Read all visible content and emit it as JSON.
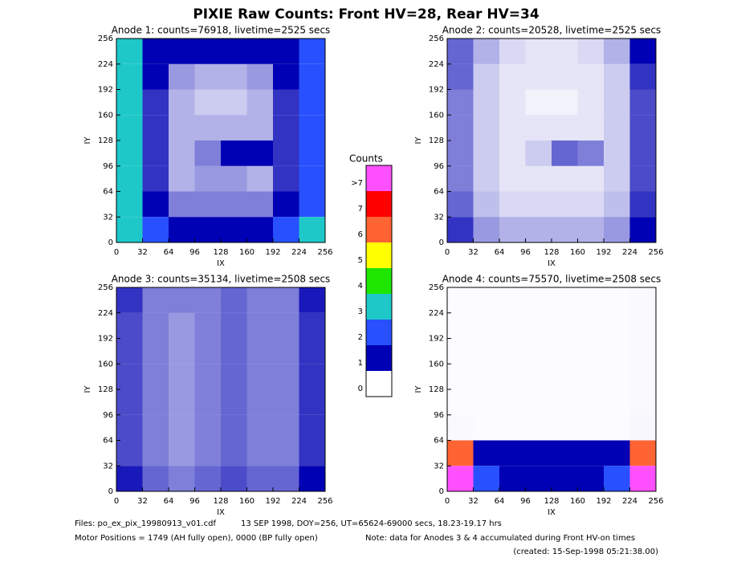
{
  "title": "PIXIE Raw Counts:  Front HV=28, Rear HV=34",
  "chart_data": [
    {
      "type": "heatmap",
      "title": "Anode 1: counts=76918, livetime=2525 secs",
      "xlabel": "IX",
      "ylabel": "IY",
      "xlim": [
        0,
        256
      ],
      "ylim": [
        0,
        256
      ],
      "xticks": [
        0,
        32,
        64,
        96,
        128,
        160,
        192,
        224,
        256
      ],
      "yticks": [
        0,
        32,
        64,
        96,
        128,
        160,
        192,
        224,
        256
      ],
      "z": [
        [
          3,
          1.5,
          1,
          1,
          1,
          1,
          1.5,
          2.5
        ],
        [
          3,
          1,
          0.4,
          0.3,
          0.3,
          0.4,
          1,
          2
        ],
        [
          3,
          0.8,
          0.3,
          0.2,
          0.2,
          0.3,
          0.8,
          2
        ],
        [
          3,
          0.8,
          0.3,
          0.3,
          0.3,
          0.3,
          0.8,
          2
        ],
        [
          3,
          0.8,
          0.3,
          0.5,
          1.5,
          1.2,
          0.8,
          2
        ],
        [
          3,
          0.8,
          0.3,
          0.4,
          0.4,
          0.3,
          0.8,
          2
        ],
        [
          3,
          1,
          0.5,
          0.5,
          0.5,
          0.5,
          1,
          2
        ],
        [
          3,
          2,
          1.5,
          1.5,
          1.5,
          1.5,
          2,
          3
        ]
      ]
    },
    {
      "type": "heatmap",
      "title": "Anode 2: counts=20528, livetime=2525 secs",
      "xlabel": "IX",
      "ylabel": "IY",
      "xlim": [
        0,
        256
      ],
      "ylim": [
        0,
        256
      ],
      "xticks": [
        0,
        32,
        64,
        96,
        128,
        160,
        192,
        224,
        256
      ],
      "yticks": [
        0,
        32,
        64,
        96,
        128,
        160,
        192,
        224,
        256
      ],
      "z": [
        [
          0.6,
          0.3,
          0.15,
          0.1,
          0.1,
          0.15,
          0.3,
          1
        ],
        [
          0.6,
          0.2,
          0.1,
          0.1,
          0.1,
          0.1,
          0.2,
          0.8
        ],
        [
          0.5,
          0.2,
          0.1,
          0.05,
          0.05,
          0.1,
          0.2,
          0.7
        ],
        [
          0.5,
          0.2,
          0.1,
          0.1,
          0.1,
          0.1,
          0.2,
          0.7
        ],
        [
          0.5,
          0.2,
          0.1,
          0.2,
          0.6,
          0.5,
          0.2,
          0.7
        ],
        [
          0.5,
          0.2,
          0.1,
          0.1,
          0.1,
          0.1,
          0.2,
          0.7
        ],
        [
          0.6,
          0.25,
          0.15,
          0.15,
          0.15,
          0.15,
          0.25,
          0.8
        ],
        [
          0.8,
          0.4,
          0.3,
          0.3,
          0.3,
          0.3,
          0.4,
          1
        ]
      ]
    },
    {
      "type": "heatmap",
      "title": "Anode 3: counts=35134, livetime=2508 secs",
      "xlabel": "IX",
      "ylabel": "IY",
      "xlim": [
        0,
        256
      ],
      "ylim": [
        0,
        256
      ],
      "xticks": [
        0,
        32,
        64,
        96,
        128,
        160,
        192,
        224,
        256
      ],
      "yticks": [
        0,
        32,
        64,
        96,
        128,
        160,
        192,
        224,
        256
      ],
      "z": [
        [
          0.8,
          0.5,
          0.5,
          0.5,
          0.6,
          0.5,
          0.5,
          0.9
        ],
        [
          0.7,
          0.5,
          0.4,
          0.5,
          0.6,
          0.5,
          0.5,
          0.8
        ],
        [
          0.7,
          0.5,
          0.4,
          0.5,
          0.6,
          0.5,
          0.5,
          0.8
        ],
        [
          0.7,
          0.5,
          0.4,
          0.5,
          0.6,
          0.5,
          0.5,
          0.8
        ],
        [
          0.7,
          0.5,
          0.4,
          0.5,
          0.6,
          0.5,
          0.5,
          0.8
        ],
        [
          0.7,
          0.5,
          0.4,
          0.5,
          0.6,
          0.5,
          0.5,
          0.8
        ],
        [
          0.7,
          0.5,
          0.4,
          0.5,
          0.6,
          0.5,
          0.5,
          0.8
        ],
        [
          0.9,
          0.6,
          0.5,
          0.6,
          0.7,
          0.6,
          0.6,
          1
        ]
      ]
    },
    {
      "type": "heatmap",
      "title": "Anode 4: counts=75570, livetime=2508 secs",
      "xlabel": "IX",
      "ylabel": "IY",
      "xlim": [
        0,
        256
      ],
      "ylim": [
        0,
        256
      ],
      "xticks": [
        0,
        32,
        64,
        96,
        128,
        160,
        192,
        224,
        256
      ],
      "yticks": [
        0,
        32,
        64,
        96,
        128,
        160,
        192,
        224,
        256
      ],
      "z": [
        [
          0.01,
          0.01,
          0.01,
          0.01,
          0.01,
          0.01,
          0.01,
          0.02
        ],
        [
          0.01,
          0.01,
          0.01,
          0.01,
          0.01,
          0.01,
          0.01,
          0.02
        ],
        [
          0.01,
          0.01,
          0.01,
          0.01,
          0.01,
          0.01,
          0.01,
          0.02
        ],
        [
          0.01,
          0.01,
          0.01,
          0.01,
          0.01,
          0.01,
          0.01,
          0.02
        ],
        [
          0.01,
          0.01,
          0.01,
          0.01,
          0.01,
          0.01,
          0.01,
          0.02
        ],
        [
          0.02,
          0.01,
          0.01,
          0.01,
          0.01,
          0.01,
          0.01,
          0.03
        ],
        [
          6,
          1.2,
          1,
          1,
          1,
          1,
          1.2,
          6
        ],
        [
          8,
          2,
          1.5,
          1.5,
          1.5,
          1.5,
          2,
          8
        ]
      ]
    }
  ],
  "colorbar": {
    "title": "Counts",
    "labels": [
      "0",
      "1",
      "2",
      "3",
      "4",
      "5",
      "6",
      "7",
      ">7"
    ],
    "colors": [
      "#ffffff",
      "#0000b4",
      "#2850ff",
      "#1ec8c8",
      "#1ee600",
      "#ffff00",
      "#ff6432",
      "#ff0000",
      "#ff50ff"
    ]
  },
  "footer": [
    "Files: po_ex_pix_19980913_v01.cdf",
    "13 SEP 1998, DOY=256, UT=65624-69000 secs, 18.23-19.17 hrs",
    "Motor Positions = 1749 (AH fully open), 0000 (BP fully open)",
    "Note: data for Anodes 3 & 4 accumulated during Front HV-on times",
    "(created: 15-Sep-1998 05:21:38.00)"
  ]
}
